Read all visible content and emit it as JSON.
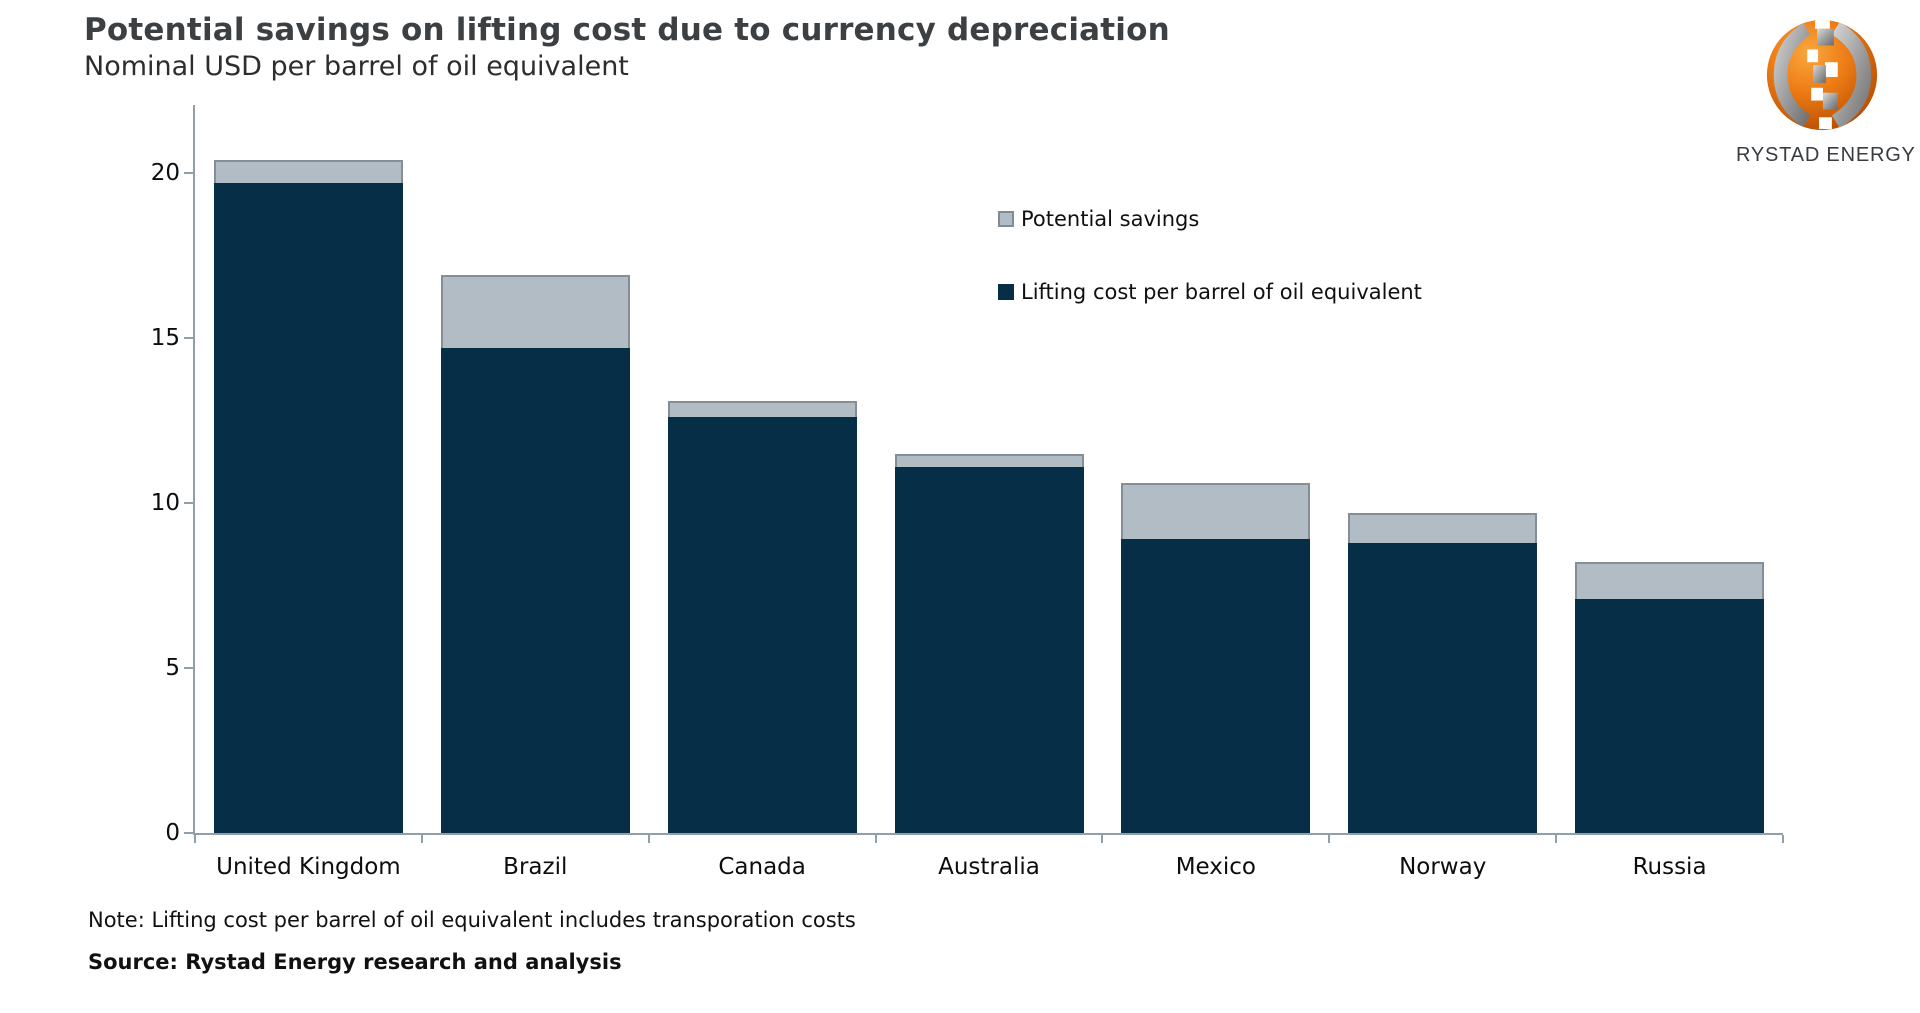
{
  "header": {
    "title": "Potential savings on lifting cost due to currency depreciation",
    "subtitle": "Nominal USD per barrel of oil equivalent"
  },
  "logo": {
    "brand": "RYSTAD ENERGY"
  },
  "legend": {
    "items": [
      {
        "label": "Potential savings",
        "color": "#b2bcc4",
        "border": "#7f8a93"
      },
      {
        "label": "Lifting cost per barrel of oil equivalent",
        "color": "#062f47",
        "border": "#062f47"
      }
    ]
  },
  "footer": {
    "note": "Note: Lifting cost per barrel of oil equivalent includes transporation costs",
    "source": "Source: Rystad Energy research and analysis"
  },
  "colors": {
    "navy": "#062f47",
    "gray": "#b2bcc4",
    "gray_border": "#838e96",
    "axis": "#8fa0ab",
    "title_text": "#3d4043"
  },
  "chart_data": {
    "type": "bar",
    "stacked": true,
    "title": "Potential savings on lifting cost due to currency depreciation",
    "subtitle": "Nominal USD per barrel of oil equivalent",
    "xlabel": "",
    "ylabel": "Nominal USD per barrel of oil equivalent",
    "categories": [
      "United Kingdom",
      "Brazil",
      "Canada",
      "Australia",
      "Mexico",
      "Norway",
      "Russia"
    ],
    "series": [
      {
        "name": "Lifting cost per barrel of oil equivalent",
        "color": "#062f47",
        "values": [
          19.7,
          14.7,
          12.6,
          11.1,
          8.9,
          8.8,
          7.1
        ]
      },
      {
        "name": "Potential savings",
        "color": "#b2bcc4",
        "values": [
          0.7,
          2.2,
          0.5,
          0.4,
          1.7,
          0.9,
          1.1
        ]
      }
    ],
    "totals": [
      20.4,
      16.9,
      13.1,
      11.5,
      10.6,
      9.7,
      8.2
    ],
    "ylim": [
      0,
      22
    ],
    "yticks": [
      0,
      5,
      10,
      15,
      20
    ],
    "grid": false,
    "legend_position": "inside-top-right"
  }
}
